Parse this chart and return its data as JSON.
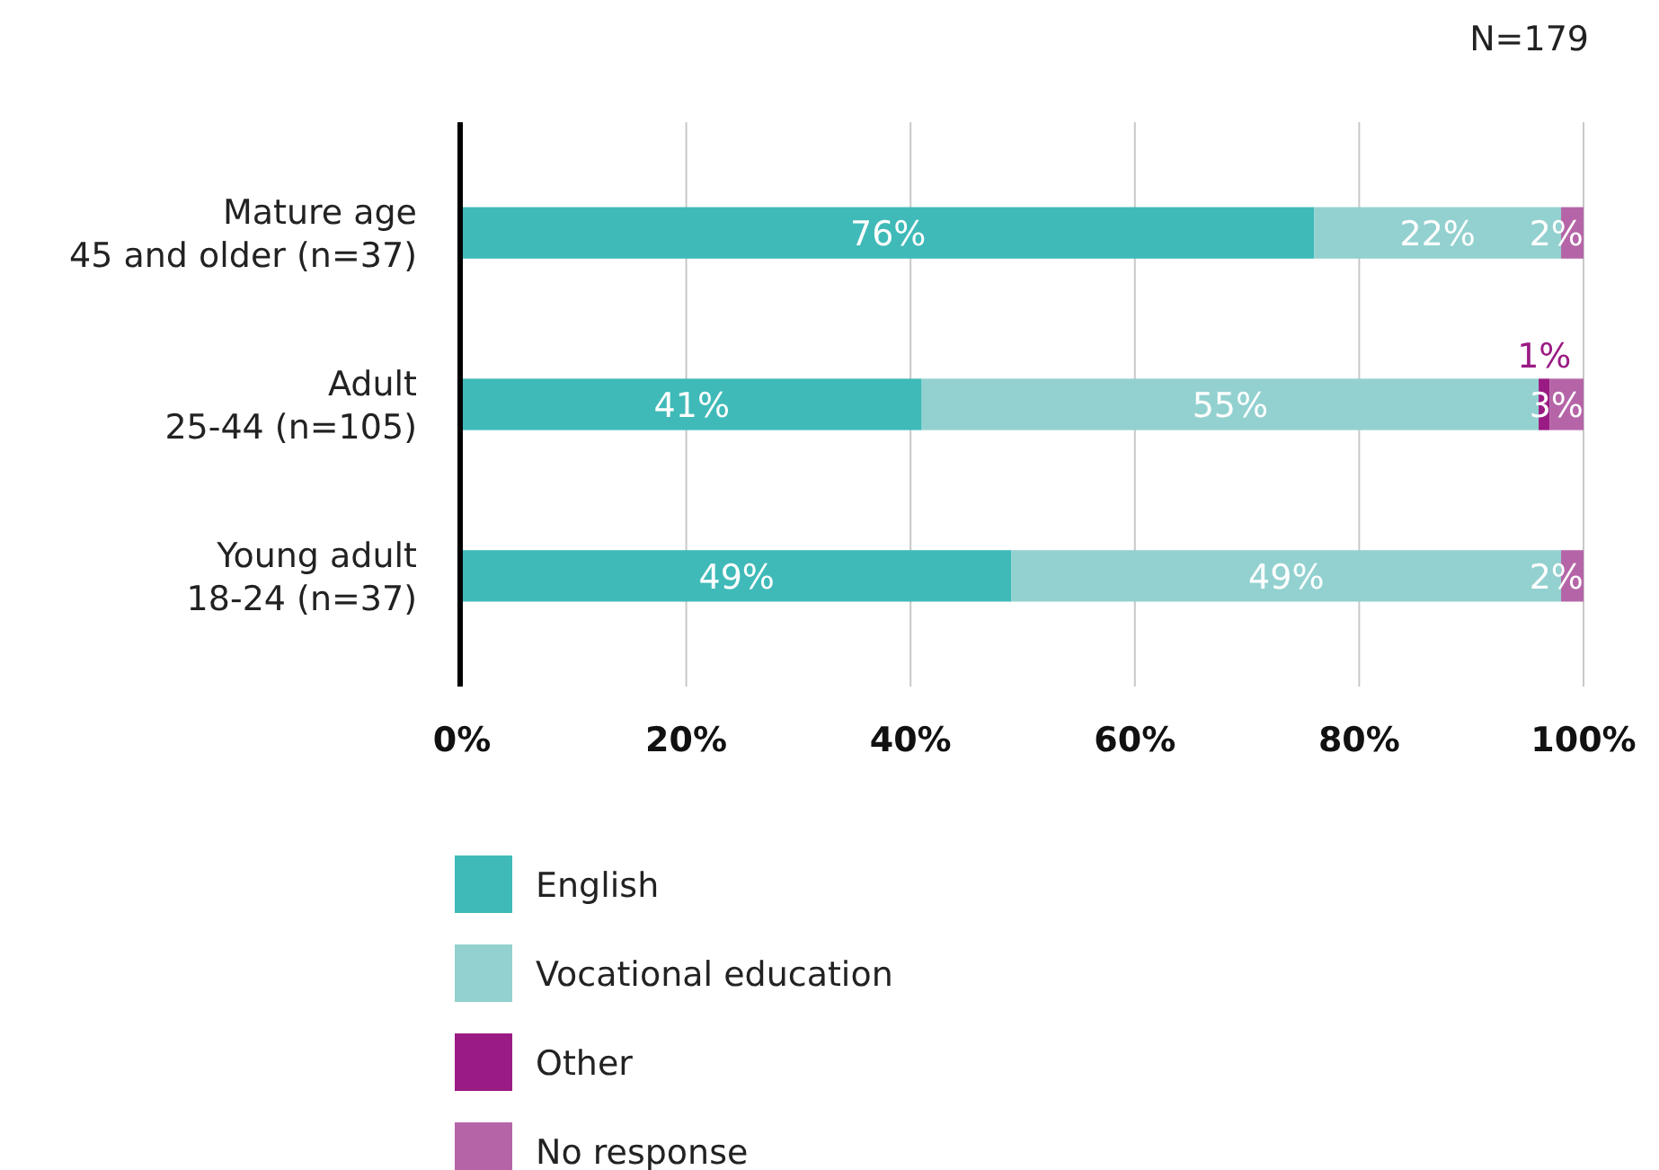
{
  "chart_data": {
    "type": "bar",
    "orientation": "horizontal",
    "stacked": true,
    "categories": [
      "Mature age\n45 and older (n=37)",
      "Adult\n25-44 (n=105)",
      "Young adult\n18-24 (n=37)"
    ],
    "series": [
      {
        "name": "English",
        "color": "#3fbab8",
        "values": [
          76,
          41,
          49
        ],
        "value_labels": [
          "76%",
          "41%",
          "49%"
        ]
      },
      {
        "name": "Vocational education",
        "color": "#93d1d0",
        "values": [
          22,
          55,
          49
        ],
        "value_labels": [
          "22%",
          "55%",
          "49%"
        ]
      },
      {
        "name": "Other",
        "color": "#9a1b84",
        "values": [
          0,
          1,
          0
        ],
        "value_labels": [
          null,
          "1%",
          null
        ]
      },
      {
        "name": "No response",
        "color": "#b565a7",
        "values": [
          2,
          3,
          2
        ],
        "value_labels": [
          "2%",
          "3%",
          "2%"
        ]
      }
    ],
    "xlim": [
      0,
      100
    ],
    "xticks": [
      {
        "value": 0,
        "label": "0%"
      },
      {
        "value": 20,
        "label": "20%"
      },
      {
        "value": 40,
        "label": "40%"
      },
      {
        "value": 60,
        "label": "60%"
      },
      {
        "value": 80,
        "label": "80%"
      },
      {
        "value": 100,
        "label": "100%"
      }
    ],
    "grid": "x",
    "legend": "bottom left",
    "annotations": [
      "N=179"
    ]
  }
}
